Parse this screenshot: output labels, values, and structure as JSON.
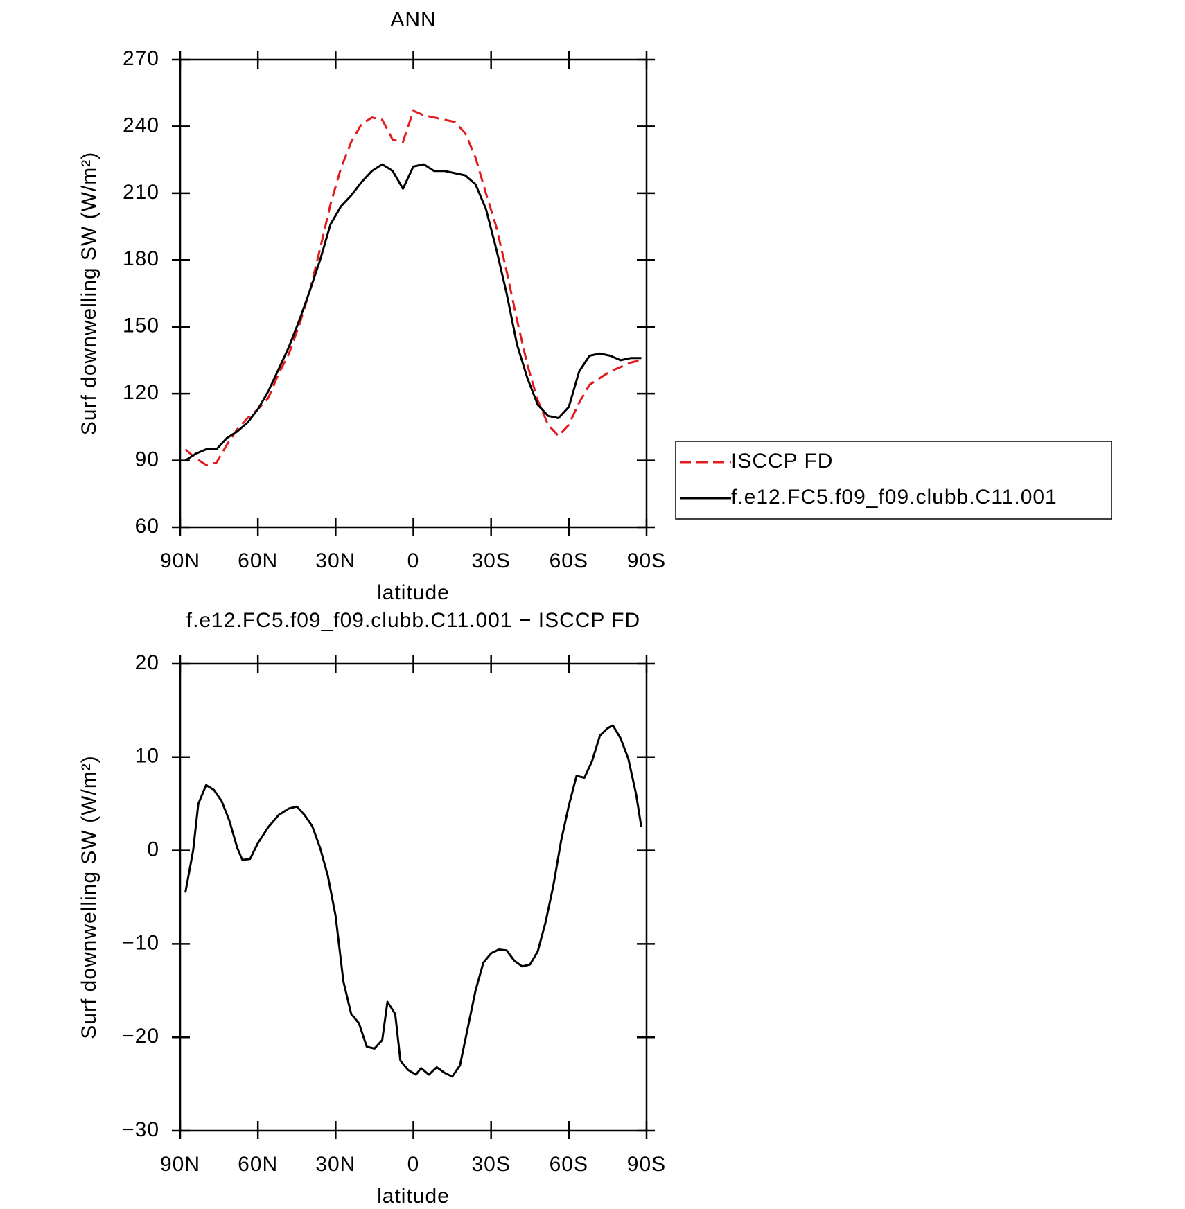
{
  "chart_data": [
    {
      "type": "line",
      "title": "ANN",
      "xlabel": "latitude",
      "ylabel": "Surf downwelling SW (W/m²)",
      "x": [
        88,
        84,
        80,
        76,
        72,
        68,
        64,
        60,
        56,
        52,
        48,
        44,
        40,
        36,
        32,
        28,
        24,
        20,
        16,
        12,
        8,
        4,
        0,
        -4,
        -8,
        -12,
        -16,
        -20,
        -24,
        -28,
        -32,
        -36,
        -40,
        -44,
        -48,
        -52,
        -56,
        -60,
        -64,
        -68,
        -72,
        -76,
        -80,
        -84,
        -88
      ],
      "series": [
        {
          "name": "ISCCP FD",
          "color": "#e31a1c",
          "line_style": "dashed",
          "values": [
            95,
            91,
            88,
            89,
            97,
            104,
            109,
            113,
            118,
            129,
            138,
            151,
            166,
            185,
            205,
            221,
            233,
            241,
            244,
            243,
            234,
            233,
            247,
            245,
            244,
            243,
            242,
            237,
            226,
            210,
            195,
            175,
            153,
            133,
            117,
            106,
            101,
            106,
            116,
            124,
            127,
            130,
            132,
            134,
            135
          ]
        },
        {
          "name": "f.e12.FC5.f09_f09.clubb.C11.001",
          "color": "#000000",
          "line_style": "solid",
          "values": [
            90,
            93,
            95,
            95,
            100,
            103,
            107,
            113,
            121,
            131,
            141,
            153,
            166,
            180,
            196,
            204,
            209,
            215,
            220,
            223,
            220,
            212,
            222,
            223,
            220,
            220,
            219,
            218,
            214,
            203,
            185,
            165,
            142,
            127,
            115,
            110,
            109,
            114,
            130,
            137,
            138,
            137,
            135,
            136,
            136
          ]
        }
      ],
      "xlim": [
        90,
        -90
      ],
      "xticks": [
        {
          "value": 90,
          "label": "90N"
        },
        {
          "value": 60,
          "label": "60N"
        },
        {
          "value": 30,
          "label": "30N"
        },
        0,
        {
          "value": -30,
          "label": "30S"
        },
        {
          "value": -60,
          "label": "60S"
        },
        {
          "value": -90,
          "label": "90S"
        }
      ],
      "ylim": [
        60,
        270
      ],
      "yticks": [
        60,
        90,
        120,
        150,
        180,
        210,
        240,
        270
      ],
      "legend": "right"
    },
    {
      "type": "line",
      "title": "f.e12.FC5.f09_f09.clubb.C11.001 − ISCCP FD",
      "xlabel": "latitude",
      "ylabel": "Surf downwelling SW (W/m²)",
      "x": [
        88,
        85,
        83,
        80,
        77,
        74,
        71,
        68,
        66,
        63,
        60,
        56,
        52,
        48,
        45,
        42,
        39,
        36,
        33,
        30,
        27,
        24,
        21,
        18,
        15,
        12,
        10,
        7,
        5,
        2,
        -1,
        -3,
        -6,
        -9,
        -12,
        -15,
        -18,
        -21,
        -24,
        -27,
        -30,
        -33,
        -36,
        -39,
        -42,
        -45,
        -48,
        -51,
        -54,
        -57,
        -60,
        -63,
        -66,
        -69,
        -72,
        -75,
        -77,
        -80,
        -83,
        -86,
        -88
      ],
      "series": [
        {
          "color": "#000000",
          "line_style": "solid",
          "values": [
            -4.5,
            0,
            5,
            7,
            6.5,
            5.3,
            3.2,
            0.3,
            -1,
            -0.9,
            0.8,
            2.5,
            3.8,
            4.5,
            4.7,
            3.8,
            2.6,
            0.3,
            -2.7,
            -7,
            -14,
            -17.5,
            -18.5,
            -21,
            -21.2,
            -20.3,
            -16.2,
            -17.5,
            -22.5,
            -23.5,
            -24,
            -23.3,
            -24,
            -23.2,
            -23.8,
            -24.2,
            -23,
            -19,
            -15,
            -12,
            -11,
            -10.6,
            -10.7,
            -11.8,
            -12.4,
            -12.2,
            -10.8,
            -7.7,
            -3.8,
            1,
            4.8,
            8,
            7.8,
            9.6,
            12.3,
            13.1,
            13.4,
            12,
            9.8,
            6,
            2.5
          ]
        }
      ],
      "xlim": [
        90,
        -90
      ],
      "xticks": [
        {
          "value": 90,
          "label": "90N"
        },
        {
          "value": 60,
          "label": "60N"
        },
        {
          "value": 30,
          "label": "30N"
        },
        0,
        {
          "value": -30,
          "label": "30S"
        },
        {
          "value": -60,
          "label": "60S"
        },
        {
          "value": -90,
          "label": "90S"
        }
      ],
      "ylim": [
        -30,
        20
      ],
      "yticks": [
        {
          "value": -30,
          "label": "−30"
        },
        {
          "value": -20,
          "label": "−20"
        },
        {
          "value": -10,
          "label": "−10"
        },
        0,
        10,
        20
      ]
    }
  ]
}
